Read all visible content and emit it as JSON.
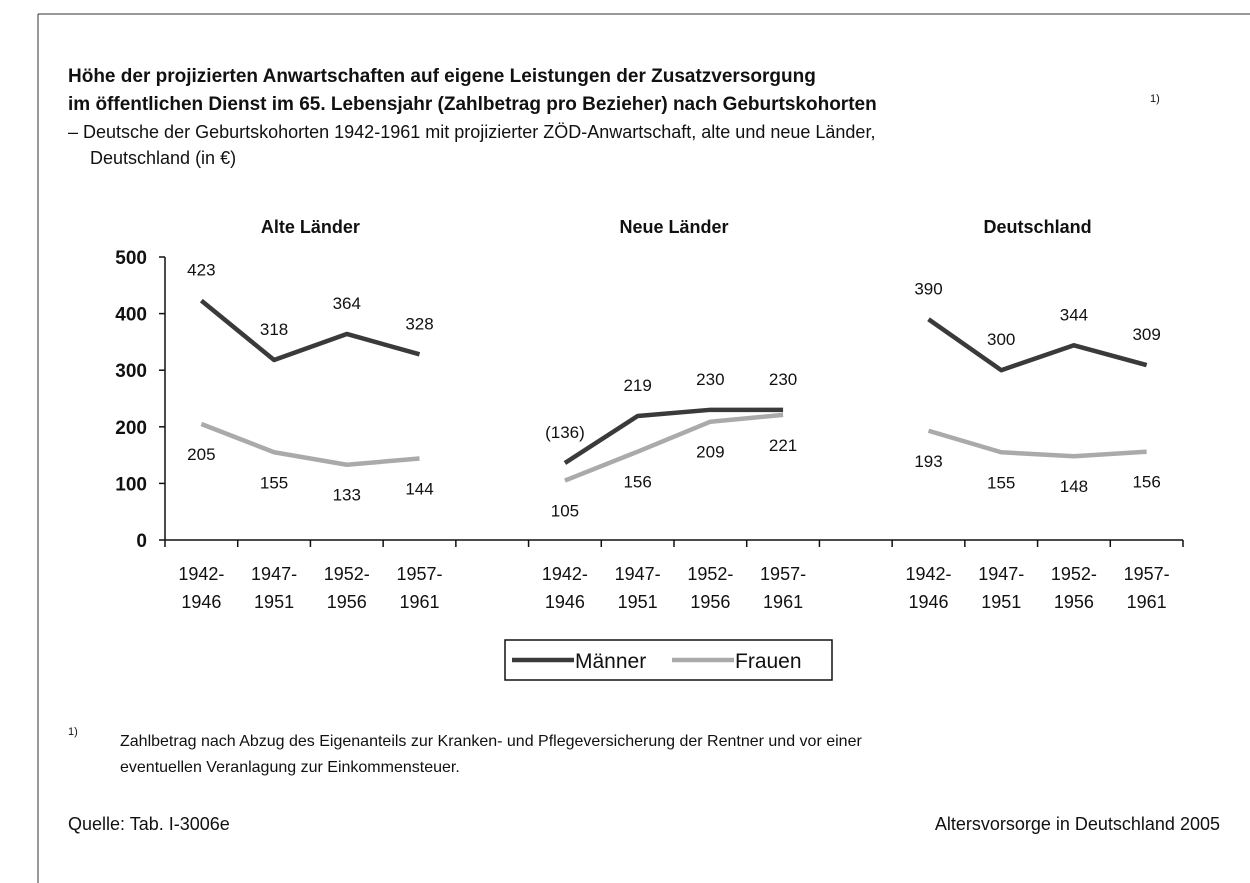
{
  "chart_data": {
    "type": "line",
    "title_lines": [
      "Höhe der projizierten Anwartschaften auf eigene Leistungen der Zusatzversorgung",
      "im öffentlichen Dienst im 65. Lebensjahr (Zahlbetrag pro Bezieher) nach Geburtskohorten"
    ],
    "title_note": "1)",
    "subtitle_lines": [
      "– Deutsche der Geburtskohorten 1942-1961 mit projizierter ZÖD-Anwartschaft, alte und neue Länder,",
      "Deutschland (in €)"
    ],
    "categories": [
      [
        "1942-",
        "1946"
      ],
      [
        "1947-",
        "1951"
      ],
      [
        "1952-",
        "1956"
      ],
      [
        "1957-",
        "1961"
      ]
    ],
    "ylim": [
      0,
      500
    ],
    "yticks": [
      0,
      100,
      200,
      300,
      400,
      500
    ],
    "series": [
      {
        "name": "Männer",
        "color": "#3a3a3a"
      },
      {
        "name": "Frauen",
        "color": "#aaaaaa"
      }
    ],
    "panels": [
      {
        "title": "Alte Länder",
        "series": [
          {
            "values": [
              423,
              318,
              364,
              328
            ]
          },
          {
            "values": [
              205,
              155,
              133,
              144
            ]
          }
        ]
      },
      {
        "title": "Neue Länder",
        "series": [
          {
            "values": [
              136,
              219,
              230,
              230
            ],
            "value_labels": [
              "(136)",
              "219",
              "230",
              "230"
            ]
          },
          {
            "values": [
              105,
              156,
              209,
              221
            ]
          }
        ]
      },
      {
        "title": "Deutschland",
        "series": [
          {
            "values": [
              390,
              300,
              344,
              309
            ]
          },
          {
            "values": [
              193,
              155,
              148,
              156
            ]
          }
        ]
      }
    ],
    "footnote_mark": "1)",
    "footnote_lines": [
      "Zahlbetrag nach Abzug des Eigenanteils zur Kranken- und Pflegeversicherung der Rentner und vor einer",
      "eventuellen Veranlagung zur Einkommensteuer."
    ],
    "source": "Quelle: Tab. I-3006e",
    "publication": "Altersvorsorge in Deutschland 2005"
  }
}
